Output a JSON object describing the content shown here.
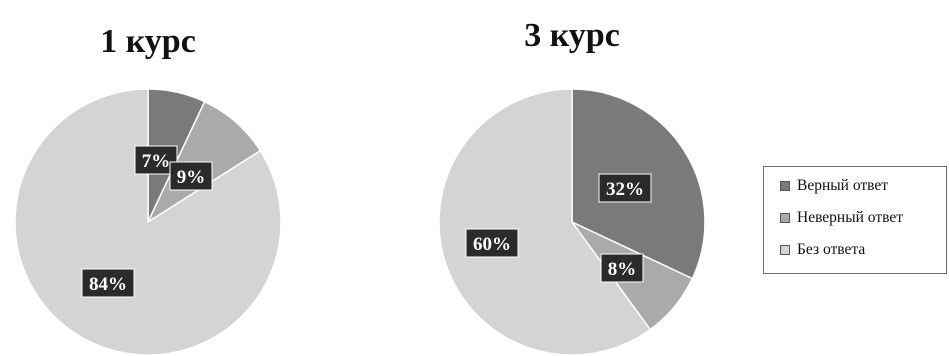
{
  "chart_data": [
    {
      "type": "pie",
      "title": "1 курс",
      "slices": [
        {
          "name": "Верный ответ",
          "value": 7,
          "label": "7%",
          "color": "#7a7a7a"
        },
        {
          "name": "Неверный ответ",
          "value": 9,
          "label": "9%",
          "color": "#aaaaaa"
        },
        {
          "name": "Без ответа",
          "value": 84,
          "label": "84%",
          "color": "#d4d4d4"
        }
      ]
    },
    {
      "type": "pie",
      "title": "3 курс",
      "slices": [
        {
          "name": "Верный ответ",
          "value": 32,
          "label": "32%",
          "color": "#7a7a7a"
        },
        {
          "name": "Неверный ответ",
          "value": 8,
          "label": "8%",
          "color": "#aaaaaa"
        },
        {
          "name": "Без ответа",
          "value": 60,
          "label": "60%",
          "color": "#d4d4d4"
        }
      ]
    }
  ],
  "legend": {
    "position": "right",
    "items": [
      {
        "label": "Верный ответ",
        "color": "#7a7a7a"
      },
      {
        "label": "Неверный ответ",
        "color": "#aaaaaa"
      },
      {
        "label": "Без ответа",
        "color": "#d4d4d4"
      }
    ]
  }
}
